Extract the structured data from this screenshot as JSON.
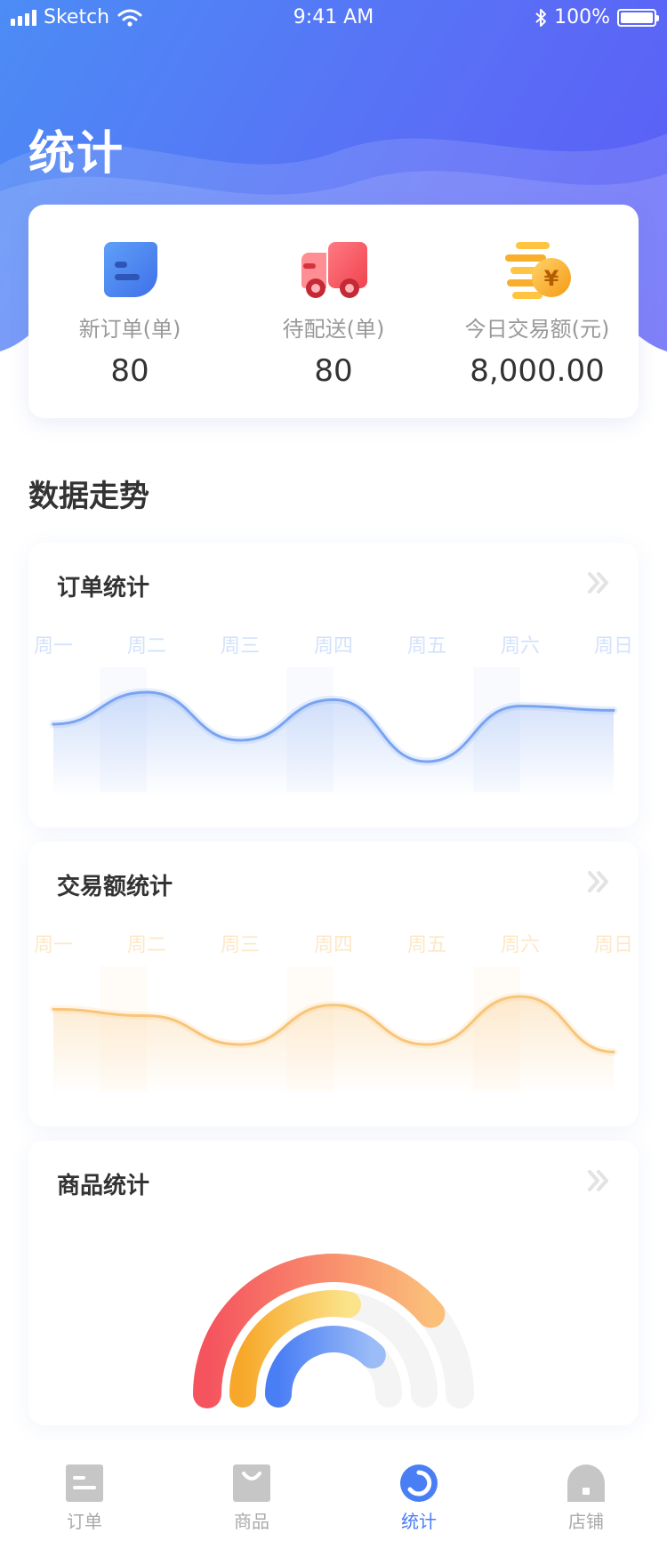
{
  "status_bar": {
    "carrier": "Sketch",
    "time": "9:41 AM",
    "battery_percent": "100%",
    "battery_level": 1.0
  },
  "header": {
    "title": "统计"
  },
  "summary": [
    {
      "label": "新订单(单)",
      "value": "80",
      "icon": "order-doc-icon",
      "color": "#4a7ef5"
    },
    {
      "label": "待配送(单)",
      "value": "80",
      "icon": "delivery-truck-icon",
      "color": "#f5535e"
    },
    {
      "label": "今日交易额(元)",
      "value": "8,000.00",
      "icon": "coins-yen-icon",
      "color": "#f7b32b"
    }
  ],
  "section": {
    "title": "数据走势"
  },
  "order_card": {
    "title": "订单统计",
    "icon": "double-chevron-right-icon"
  },
  "amount_card": {
    "title": "交易额统计",
    "icon": "double-chevron-right-icon"
  },
  "goods_card": {
    "title": "商品统计",
    "icon": "double-chevron-right-icon"
  },
  "chart_data": [
    {
      "type": "area",
      "categories": [
        "周一",
        "周二",
        "周三",
        "周四",
        "周五",
        "周六",
        "周日"
      ],
      "series": [
        {
          "values": [
            55,
            85,
            40,
            78,
            20,
            72,
            68
          ]
        }
      ],
      "ylim": [
        0,
        100
      ],
      "color": "#7aa4f2",
      "label_color": "#d3e2fb"
    },
    {
      "type": "area",
      "categories": [
        "周一",
        "周二",
        "周三",
        "周四",
        "周五",
        "周六",
        "周日"
      ],
      "series": [
        {
          "values": [
            68,
            62,
            35,
            72,
            35,
            80,
            28
          ]
        }
      ],
      "ylim": [
        0,
        100
      ],
      "color": "#f8c57a",
      "label_color": "#fde8c8"
    },
    {
      "type": "pie",
      "series": [
        {
          "value": 0.78,
          "color": "#f5535e",
          "color_end": "#fbbf7a"
        },
        {
          "value": 0.55,
          "color": "#f7a82a",
          "color_end": "#fbe38a"
        },
        {
          "value": 0.75,
          "color": "#4a7ef5",
          "color_end": "#9bbcf7"
        }
      ]
    }
  ],
  "tabbar": {
    "items": [
      {
        "label": "订单",
        "icon": "order-tab-icon",
        "active": false
      },
      {
        "label": "商品",
        "icon": "goods-bag-icon",
        "active": false
      },
      {
        "label": "统计",
        "icon": "stats-ring-icon",
        "active": true
      },
      {
        "label": "店铺",
        "icon": "shop-icon",
        "active": false
      }
    ]
  }
}
